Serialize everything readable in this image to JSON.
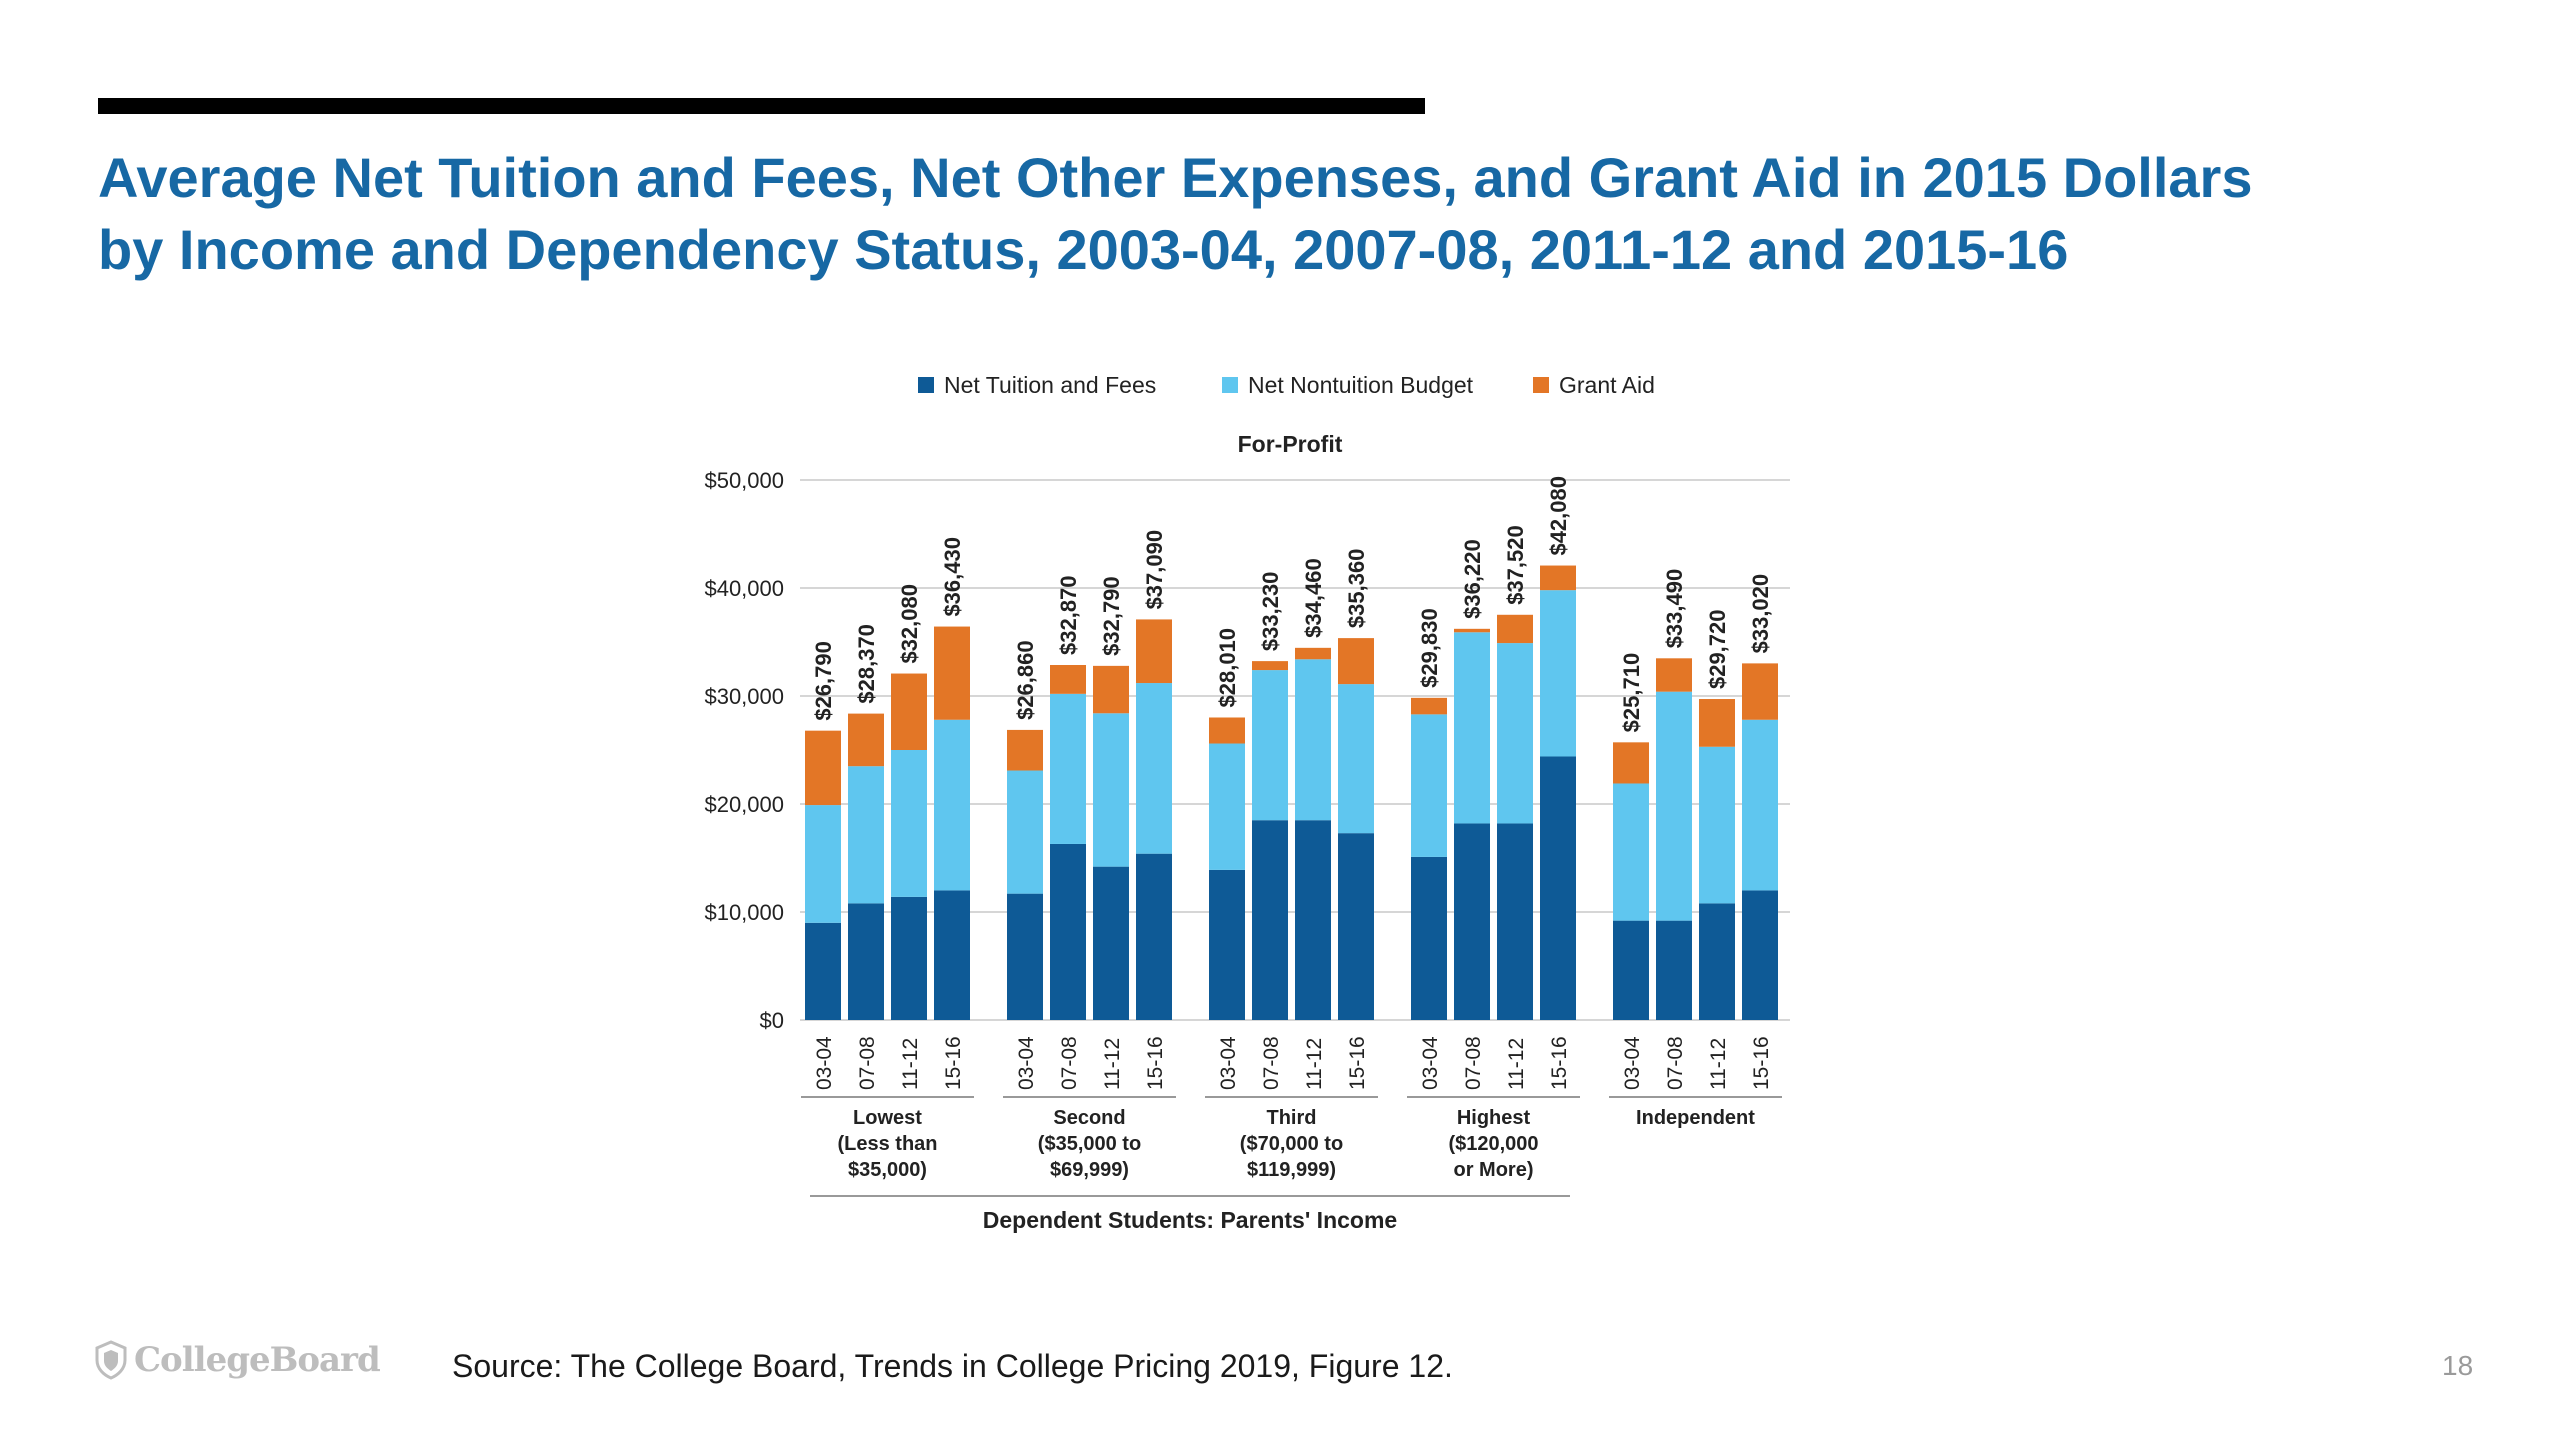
{
  "slide": {
    "title_line1": "Average Net Tuition and Fees, Net Other Expenses, and Grant Aid in 2015 Dollars",
    "title_line2": "by Income and Dependency Status, 2003-04, 2007-08, 2011-12 and 2015-16",
    "source": "Source: The College Board, Trends in College Pricing 2019, Figure 12.",
    "page_number": "18",
    "logo_text": "CollegeBoard"
  },
  "chart_data": {
    "type": "bar",
    "stacked": true,
    "title": "For-Profit",
    "ylim": [
      0,
      50000
    ],
    "yticks": [
      "$0",
      "$10,000",
      "$20,000",
      "$30,000",
      "$40,000",
      "$50,000"
    ],
    "grid": true,
    "legend_position": "top",
    "colors": {
      "Net Tuition and Fees": "#0e5a96",
      "Net Nontuition Budget": "#5fc6ef",
      "Grant Aid": "#e37626"
    },
    "groups": [
      {
        "label": [
          "Lowest",
          "(Less than",
          "$35,000)"
        ],
        "years": [
          "03-04",
          "07-08",
          "11-12",
          "15-16"
        ]
      },
      {
        "label": [
          "Second",
          "($35,000 to",
          "$69,999)"
        ],
        "years": [
          "03-04",
          "07-08",
          "11-12",
          "15-16"
        ]
      },
      {
        "label": [
          "Third",
          "($70,000 to",
          "$119,999)"
        ],
        "years": [
          "03-04",
          "07-08",
          "11-12",
          "15-16"
        ]
      },
      {
        "label": [
          "Highest",
          "($120,000",
          "or More)"
        ],
        "years": [
          "03-04",
          "07-08",
          "11-12",
          "15-16"
        ]
      },
      {
        "label": [
          "Independent"
        ],
        "years": [
          "03-04",
          "07-08",
          "11-12",
          "15-16"
        ]
      }
    ],
    "series": [
      {
        "name": "Net Tuition and Fees",
        "values": [
          9000,
          10800,
          11400,
          12000,
          11700,
          16300,
          14200,
          15400,
          13900,
          18500,
          18500,
          17300,
          15100,
          18200,
          18200,
          24400,
          9200,
          9200,
          10800,
          12000
        ]
      },
      {
        "name": "Net Nontuition Budget",
        "values": [
          10900,
          12700,
          13600,
          15800,
          11400,
          13900,
          14200,
          15800,
          11700,
          13900,
          14900,
          13800,
          13200,
          17700,
          16700,
          15400,
          12700,
          21200,
          14500,
          15800
        ]
      },
      {
        "name": "Grant Aid",
        "values": [
          6890,
          4870,
          7080,
          8630,
          3760,
          2670,
          4390,
          5890,
          2410,
          830,
          1060,
          4260,
          1530,
          320,
          2620,
          2280,
          3810,
          3090,
          4420,
          5220
        ]
      }
    ],
    "totals": [
      "$26,790",
      "$28,370",
      "$32,080",
      "$36,430",
      "$26,860",
      "$32,870",
      "$32,790",
      "$37,090",
      "$28,010",
      "$33,230",
      "$34,460",
      "$35,360",
      "$29,830",
      "$36,220",
      "$37,520",
      "$42,080",
      "$25,710",
      "$33,490",
      "$29,720",
      "$33,020"
    ],
    "bracket_label": "Dependent Students: Parents' Income"
  }
}
